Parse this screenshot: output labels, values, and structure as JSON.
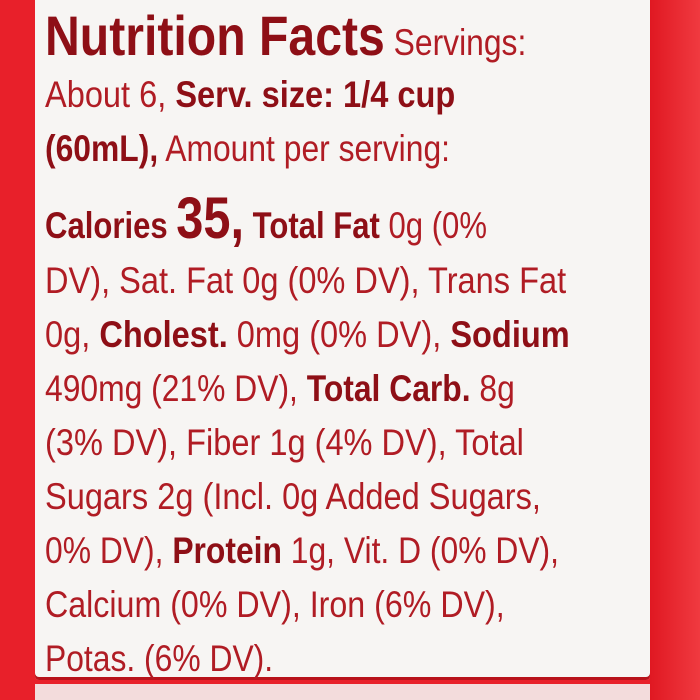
{
  "colors": {
    "text": "#b01c24",
    "bold_text": "#8e0f16",
    "border": "#e8202a",
    "panel": "#f7f5f3"
  },
  "lines": [
    [
      {
        "t": "Nutrition Facts",
        "b": true,
        "c": "title"
      },
      {
        "t": " Servings:",
        "b": false
      }
    ],
    [
      {
        "t": "About 6, ",
        "b": false
      },
      {
        "t": "Serv. size: 1/4 cup",
        "b": true
      }
    ],
    [
      {
        "t": "(60mL),",
        "b": true
      },
      {
        "t": " Amount per serving:",
        "b": false
      }
    ],
    [
      {
        "t": "Calories ",
        "b": true
      },
      {
        "t": "35,",
        "b": true,
        "c": "big"
      },
      {
        "t": " Total Fat",
        "b": true
      },
      {
        "t": " 0g (0%",
        "b": false
      }
    ],
    [
      {
        "t": "DV), Sat. Fat 0g (0% DV), Trans Fat",
        "b": false
      }
    ],
    [
      {
        "t": "0g, ",
        "b": false
      },
      {
        "t": "Cholest.",
        "b": true
      },
      {
        "t": " 0mg (0% DV), ",
        "b": false
      },
      {
        "t": "Sodium",
        "b": true
      }
    ],
    [
      {
        "t": "490mg (21% DV), ",
        "b": false
      },
      {
        "t": "Total Carb.",
        "b": true
      },
      {
        "t": " 8g",
        "b": false
      }
    ],
    [
      {
        "t": "(3% DV), Fiber 1g (4% DV), Total",
        "b": false
      }
    ],
    [
      {
        "t": "Sugars 2g (Incl. 0g Added Sugars,",
        "b": false
      }
    ],
    [
      {
        "t": "0% DV), ",
        "b": false
      },
      {
        "t": "Protein",
        "b": true
      },
      {
        "t": " 1g, Vit. D (0% DV),",
        "b": false
      }
    ],
    [
      {
        "t": "Calcium (0% DV), Iron (6% DV),",
        "b": false
      }
    ],
    [
      {
        "t": "Potas. (6% DV).",
        "b": false
      }
    ]
  ]
}
